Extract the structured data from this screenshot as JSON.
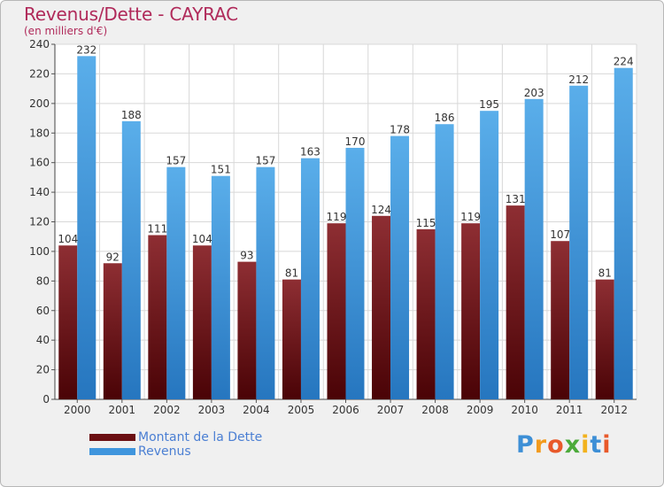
{
  "header": {
    "title": "Revenus/Dette - CAYRAC",
    "subtitle": "(en milliers d'€)"
  },
  "chart_data": {
    "type": "bar",
    "title": "Revenus/Dette - CAYRAC",
    "ylabel": "(en milliers d'€)",
    "xlabel": "",
    "categories": [
      "2000",
      "2001",
      "2002",
      "2003",
      "2004",
      "2005",
      "2006",
      "2007",
      "2008",
      "2009",
      "2010",
      "2011",
      "2012"
    ],
    "series": [
      {
        "name": "Montant de la Dette",
        "color": "#7a1f22",
        "values": [
          104,
          92,
          111,
          104,
          93,
          81,
          119,
          124,
          115,
          119,
          131,
          107,
          81
        ]
      },
      {
        "name": "Revenus",
        "color": "#3f95dd",
        "values": [
          232,
          188,
          157,
          151,
          157,
          163,
          170,
          178,
          186,
          195,
          203,
          212,
          224
        ]
      }
    ],
    "ylim": [
      0,
      240
    ],
    "yticks": [
      0,
      20,
      40,
      60,
      80,
      100,
      120,
      140,
      160,
      180,
      200,
      220,
      240
    ],
    "grid": true,
    "legend_position": "bottom-left"
  },
  "legend": {
    "items": [
      {
        "label": "Montant de la Dette",
        "color": "#6b0f12"
      },
      {
        "label": "Revenus",
        "color": "#3f95dd"
      }
    ]
  },
  "logo": {
    "letters": [
      {
        "ch": "P",
        "color": "#3d8fd6"
      },
      {
        "ch": "r",
        "color": "#f29b1e"
      },
      {
        "ch": "o",
        "color": "#e8592a"
      },
      {
        "ch": "x",
        "color": "#4caa3a"
      },
      {
        "ch": "i",
        "color": "#f2b21e"
      },
      {
        "ch": "t",
        "color": "#3d8fd6"
      },
      {
        "ch": "i",
        "color": "#e8592a"
      }
    ]
  }
}
